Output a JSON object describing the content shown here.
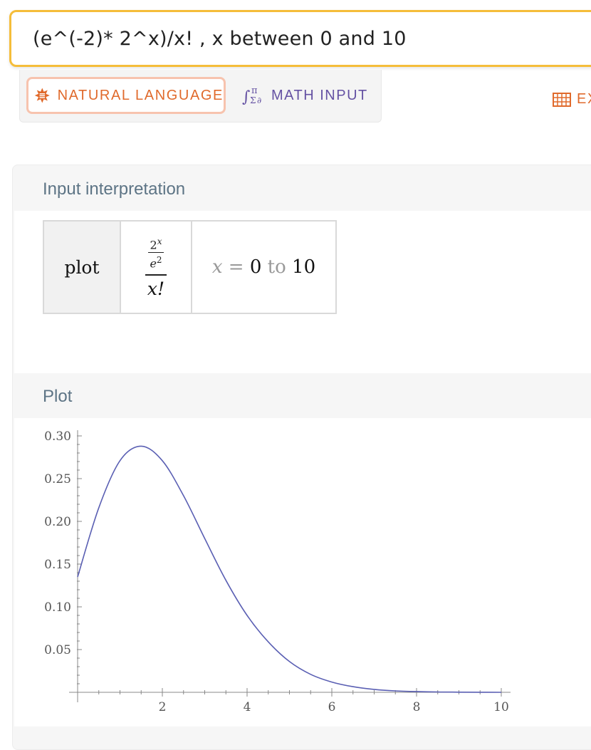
{
  "search": {
    "query": "(e^(-2)* 2^x)/x! , x between 0 and 10"
  },
  "modes": {
    "natural_language": "NATURAL LANGUAGE",
    "math_input": "MATH INPUT",
    "extended_partial": "EX"
  },
  "pods": {
    "interpretation": {
      "title": "Input interpretation",
      "command": "plot",
      "numerator_base": "2",
      "numerator_exp": "x",
      "inner_den_base": "e",
      "inner_den_exp": "2",
      "denominator": "x!",
      "range_var": "x",
      "range_eq": " = ",
      "range_from": "0",
      "range_to_word": " to ",
      "range_to": "10"
    },
    "plot": {
      "title": "Plot"
    }
  },
  "colors": {
    "accent": "#f5bd3a",
    "curve": "#5a5fb3",
    "nl": "#e06a2c",
    "math": "#6552a3",
    "pod_title": "#5d7485"
  },
  "chart_data": {
    "type": "line",
    "title": "",
    "xlabel": "",
    "ylabel": "",
    "xlim": [
      0,
      10
    ],
    "ylim": [
      0,
      0.3
    ],
    "x_ticks": [
      "2",
      "4",
      "6",
      "8",
      "10"
    ],
    "y_ticks": [
      "0.05",
      "0.10",
      "0.15",
      "0.20",
      "0.25",
      "0.30"
    ],
    "series": [
      {
        "function": "e^(-2)*2^x/x!",
        "x": [
          0,
          0.5,
          1,
          1.5,
          2,
          2.5,
          3,
          3.5,
          4,
          4.5,
          5,
          5.5,
          6,
          6.5,
          7,
          7.5,
          8,
          8.5,
          9,
          9.5,
          10
        ],
        "values": [
          0.135,
          0.216,
          0.271,
          0.288,
          0.271,
          0.23,
          0.18,
          0.131,
          0.09,
          0.059,
          0.036,
          0.021,
          0.012,
          0.0066,
          0.0034,
          0.0017,
          0.0009,
          0.0004,
          0.0002,
          0.0001,
          4e-05
        ]
      }
    ]
  }
}
